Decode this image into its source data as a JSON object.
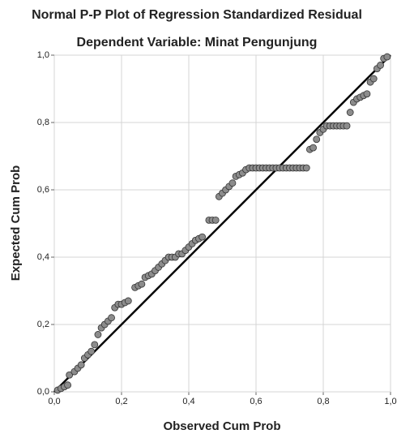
{
  "chart_data": {
    "type": "scatter",
    "title": "Normal P-P Plot of Regression Standardized Residual",
    "subtitle": "Dependent Variable: Minat Pengunjung",
    "x_label": "Observed Cum Prob",
    "y_label": "Expected Cum Prob",
    "xlim": [
      0,
      1
    ],
    "ylim": [
      0,
      1
    ],
    "xticks": [
      {
        "value": 0,
        "label": "0,0"
      },
      {
        "value": 0.2,
        "label": "0,2"
      },
      {
        "value": 0.4,
        "label": "0,4"
      },
      {
        "value": 0.6,
        "label": "0,6"
      },
      {
        "value": 0.8,
        "label": "0,8"
      },
      {
        "value": 1,
        "label": "1,0"
      }
    ],
    "yticks": [
      {
        "value": 0,
        "label": "0,0"
      },
      {
        "value": 0.2,
        "label": "0,2"
      },
      {
        "value": 0.4,
        "label": "0,4"
      },
      {
        "value": 0.6,
        "label": "0,6"
      },
      {
        "value": 0.8,
        "label": "0,8"
      },
      {
        "value": 1,
        "label": "1,0"
      }
    ],
    "grid": true,
    "reference_line": true,
    "line_color": "#000000",
    "color": "#8c8c8c",
    "x": [
      0.01,
      0.02,
      0.03,
      0.04,
      0.045,
      0.06,
      0.07,
      0.08,
      0.09,
      0.1,
      0.11,
      0.12,
      0.13,
      0.14,
      0.15,
      0.16,
      0.17,
      0.18,
      0.19,
      0.2,
      0.21,
      0.22,
      0.24,
      0.25,
      0.26,
      0.27,
      0.28,
      0.29,
      0.3,
      0.31,
      0.32,
      0.33,
      0.34,
      0.35,
      0.36,
      0.37,
      0.38,
      0.39,
      0.4,
      0.41,
      0.42,
      0.43,
      0.44,
      0.46,
      0.47,
      0.48,
      0.49,
      0.5,
      0.51,
      0.52,
      0.53,
      0.54,
      0.55,
      0.56,
      0.57,
      0.58,
      0.59,
      0.6,
      0.61,
      0.62,
      0.63,
      0.64,
      0.65,
      0.66,
      0.67,
      0.68,
      0.69,
      0.7,
      0.71,
      0.72,
      0.73,
      0.74,
      0.75,
      0.76,
      0.77,
      0.78,
      0.79,
      0.8,
      0.81,
      0.82,
      0.83,
      0.84,
      0.85,
      0.86,
      0.87,
      0.88,
      0.89,
      0.9,
      0.91,
      0.92,
      0.93,
      0.94,
      0.95,
      0.96,
      0.97,
      0.98,
      0.99
    ],
    "values": [
      0.005,
      0.01,
      0.015,
      0.02,
      0.05,
      0.06,
      0.07,
      0.08,
      0.1,
      0.11,
      0.12,
      0.14,
      0.17,
      0.19,
      0.2,
      0.21,
      0.22,
      0.25,
      0.26,
      0.26,
      0.265,
      0.27,
      0.31,
      0.315,
      0.32,
      0.34,
      0.345,
      0.35,
      0.36,
      0.37,
      0.38,
      0.39,
      0.4,
      0.4,
      0.4,
      0.41,
      0.41,
      0.42,
      0.43,
      0.44,
      0.45,
      0.455,
      0.46,
      0.51,
      0.51,
      0.51,
      0.58,
      0.59,
      0.6,
      0.61,
      0.62,
      0.64,
      0.645,
      0.65,
      0.66,
      0.665,
      0.665,
      0.665,
      0.665,
      0.665,
      0.665,
      0.665,
      0.665,
      0.665,
      0.665,
      0.665,
      0.665,
      0.665,
      0.665,
      0.665,
      0.665,
      0.665,
      0.665,
      0.72,
      0.725,
      0.75,
      0.77,
      0.78,
      0.79,
      0.79,
      0.79,
      0.79,
      0.79,
      0.79,
      0.79,
      0.83,
      0.86,
      0.87,
      0.875,
      0.88,
      0.885,
      0.92,
      0.93,
      0.96,
      0.97,
      0.99,
      0.995
    ]
  }
}
